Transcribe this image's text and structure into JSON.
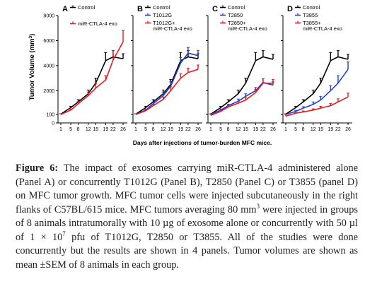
{
  "chart_data": [
    {
      "type": "line",
      "panel": "A",
      "x": [
        1,
        5,
        8,
        12,
        15,
        19,
        22,
        26
      ],
      "series": [
        {
          "name": "Control",
          "color": "#000000",
          "values": [
            120,
            650,
            1100,
            1750,
            2600,
            4400,
            4700,
            4550
          ],
          "errors": [
            30,
            100,
            180,
            300,
            400,
            650,
            500,
            400
          ]
        },
        {
          "name": "miR-CTLA-4 exo",
          "color": "#e31b23",
          "values": [
            100,
            450,
            950,
            1600,
            2200,
            2850,
            4450,
            5900
          ],
          "errors": [
            30,
            80,
            180,
            250,
            350,
            350,
            750,
            900
          ]
        }
      ],
      "ylim": [
        0,
        8000
      ]
    },
    {
      "type": "line",
      "panel": "B",
      "x": [
        1,
        5,
        8,
        12,
        15,
        19,
        22,
        26
      ],
      "series": [
        {
          "name": "Control",
          "color": "#000000",
          "values": [
            120,
            650,
            1100,
            1750,
            2500,
            4400,
            4700,
            4550
          ],
          "errors": [
            30,
            100,
            180,
            300,
            400,
            650,
            500,
            400
          ]
        },
        {
          "name": "T1012G",
          "color": "#1f3fcf",
          "values": [
            110,
            450,
            950,
            1600,
            2350,
            4200,
            5000,
            4800
          ],
          "errors": [
            30,
            80,
            150,
            250,
            350,
            450,
            450,
            400
          ]
        },
        {
          "name": "T1012G+ miR-CTLA-4 exo",
          "color": "#e31b23",
          "values": [
            100,
            400,
            800,
            1300,
            2000,
            3000,
            3450,
            3700
          ],
          "errors": [
            30,
            80,
            120,
            200,
            300,
            350,
            350,
            350
          ]
        }
      ],
      "ylim": [
        0,
        8000
      ]
    },
    {
      "type": "line",
      "panel": "C",
      "x": [
        1,
        5,
        8,
        12,
        15,
        19,
        22,
        26
      ],
      "series": [
        {
          "name": "Control",
          "color": "#000000",
          "values": [
            120,
            650,
            1100,
            1750,
            2600,
            4400,
            4700,
            4500
          ],
          "errors": [
            30,
            100,
            180,
            300,
            400,
            650,
            500,
            400
          ]
        },
        {
          "name": "T2850",
          "color": "#1f3fcf",
          "values": [
            100,
            450,
            800,
            1150,
            1550,
            2000,
            2650,
            2450
          ],
          "errors": [
            30,
            80,
            120,
            180,
            200,
            250,
            300,
            250
          ]
        },
        {
          "name": "T2850+ miR-CTLA-4 exo",
          "color": "#e31b23",
          "values": [
            90,
            350,
            700,
            1000,
            1250,
            1850,
            2600,
            2600
          ],
          "errors": [
            30,
            70,
            120,
            150,
            200,
            250,
            350,
            300
          ]
        }
      ],
      "ylim": [
        0,
        8000
      ]
    },
    {
      "type": "line",
      "panel": "D",
      "x": [
        1,
        5,
        8,
        12,
        15,
        19,
        22,
        26
      ],
      "series": [
        {
          "name": "Control",
          "color": "#000000",
          "values": [
            120,
            650,
            1100,
            1750,
            2600,
            4400,
            4700,
            4500
          ],
          "errors": [
            30,
            100,
            180,
            300,
            400,
            650,
            500,
            400
          ]
        },
        {
          "name": "T3855",
          "color": "#1f3fcf",
          "values": [
            100,
            350,
            600,
            900,
            1250,
            2000,
            2600,
            3700
          ],
          "errors": [
            30,
            80,
            120,
            200,
            300,
            400,
            600,
            600
          ]
        },
        {
          "name": "T3855+ miR-CTLA-4 exo",
          "color": "#e31b23",
          "values": [
            80,
            200,
            300,
            450,
            600,
            800,
            1100,
            1500
          ],
          "errors": [
            20,
            50,
            80,
            100,
            150,
            180,
            250,
            300
          ]
        }
      ],
      "ylim": [
        0,
        8000
      ]
    }
  ],
  "axes": {
    "ylabel_text": "Tumor Volume (mm",
    "ylabel_sup": "3",
    "ylabel_close": ")",
    "xlabel": "Days after injections of tumor-burden MFC mice.",
    "y_ticks": [
      0,
      100,
      2000,
      4000,
      6000,
      8000
    ],
    "x_ticks": [
      "1",
      "5",
      "8",
      "12",
      "15",
      "19",
      "22",
      "26"
    ]
  },
  "caption": {
    "label": "Figure 6:",
    "p1": " The impact of exosomes carrying miR-CTLA-4 administered alone (Panel A) or concurrently T1012G (Panel B), T2850 (Panel C) or T3855 (panel D) on MFC tumor growth. MFC tumor cells were injected subcutaneously in the right flanks of C57BL/615 mice. MFC tumors averaging 80 mm",
    "sup1": "3",
    "p2": " were injected in groups of 8 animals intratumorally with 10 µg of exosome alone or concurrently with 50 µl of 1 × 10",
    "sup2": "7",
    "p3": " pfu of T1012G, T2850 or T3855. All of the studies were done concurrently but the results are shown in 4 panels. Tumor volumes are shown as mean ±SEM of 8 animals in each group."
  }
}
